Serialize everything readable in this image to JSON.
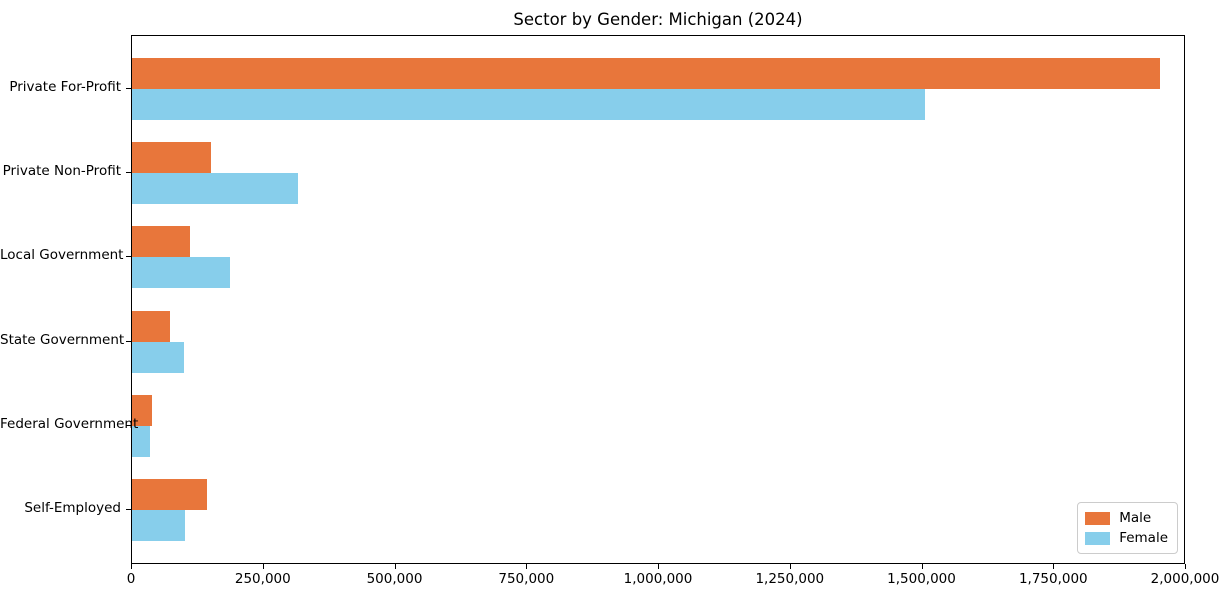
{
  "chart_data": {
    "type": "bar",
    "orientation": "horizontal",
    "title": "Sector by Gender: Michigan (2024)",
    "xlabel": "",
    "ylabel": "",
    "categories": [
      "Private For-Profit",
      "Private Non-Profit",
      "Local Government",
      "State Government",
      "Federal Government",
      "Self-Employed"
    ],
    "series": [
      {
        "name": "Male",
        "color": "#e8763b",
        "values": [
          1950000,
          150000,
          110000,
          72000,
          37000,
          142000
        ]
      },
      {
        "name": "Female",
        "color": "#87ceeb",
        "values": [
          1505000,
          315000,
          185000,
          98000,
          35000,
          100000
        ]
      }
    ],
    "xlim": [
      0,
      2000000
    ],
    "xtick_values": [
      0,
      250000,
      500000,
      750000,
      1000000,
      1250000,
      1500000,
      1750000,
      2000000
    ],
    "xtick_labels": [
      "0",
      "250,000",
      "500,000",
      "750,000",
      "1,000,000",
      "1,250,000",
      "1,500,000",
      "1,750,000",
      "2,000,000"
    ],
    "grid": false,
    "legend_position": "lower right"
  }
}
